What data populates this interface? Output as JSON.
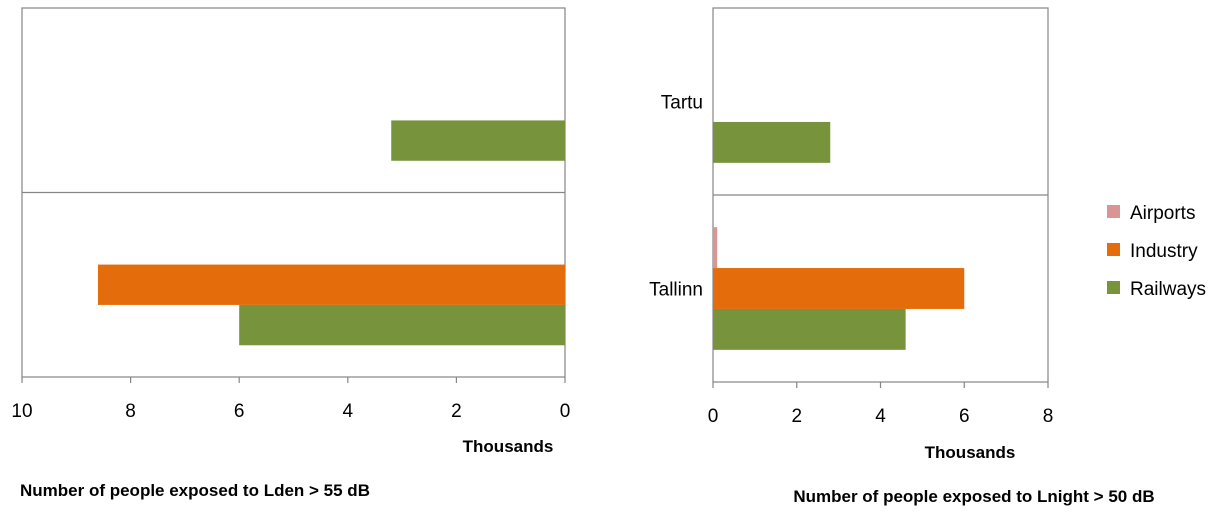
{
  "chart_data": [
    {
      "type": "bar",
      "orientation": "horizontal",
      "x_reversed": true,
      "title": "Number of people exposed to Lden > 55 dB",
      "xlabel": "Thousands",
      "ylabel": "",
      "xlim": [
        0,
        10
      ],
      "x_ticks": [
        "10",
        "8",
        "6",
        "4",
        "2",
        "0"
      ],
      "categories": [
        "",
        ""
      ],
      "series": [
        {
          "name": "Airports",
          "color": "#d99594",
          "values": [
            0,
            0
          ]
        },
        {
          "name": "Industry",
          "color": "#e46c0a",
          "values": [
            0,
            8.6
          ]
        },
        {
          "name": "Railways",
          "color": "#77933c",
          "values": [
            3.2,
            6.0
          ]
        }
      ],
      "grid": false
    },
    {
      "type": "bar",
      "orientation": "horizontal",
      "x_reversed": false,
      "title": "Number of people exposed to Lnight > 50 dB",
      "xlabel": "Thousands",
      "ylabel": "",
      "xlim": [
        0,
        8
      ],
      "x_ticks": [
        "0",
        "2",
        "4",
        "6",
        "8"
      ],
      "categories": [
        "Tartu",
        "Tallinn"
      ],
      "series": [
        {
          "name": "Airports",
          "color": "#d99594",
          "values": [
            0,
            0.1
          ]
        },
        {
          "name": "Industry",
          "color": "#e46c0a",
          "values": [
            0,
            6.0
          ]
        },
        {
          "name": "Railways",
          "color": "#77933c",
          "values": [
            2.8,
            4.6
          ]
        }
      ],
      "grid": false,
      "legend_position": "right"
    }
  ],
  "legend": {
    "items": [
      {
        "label": "Airports",
        "color": "#d99594"
      },
      {
        "label": "Industry",
        "color": "#e46c0a"
      },
      {
        "label": "Railways",
        "color": "#77933c"
      }
    ]
  }
}
